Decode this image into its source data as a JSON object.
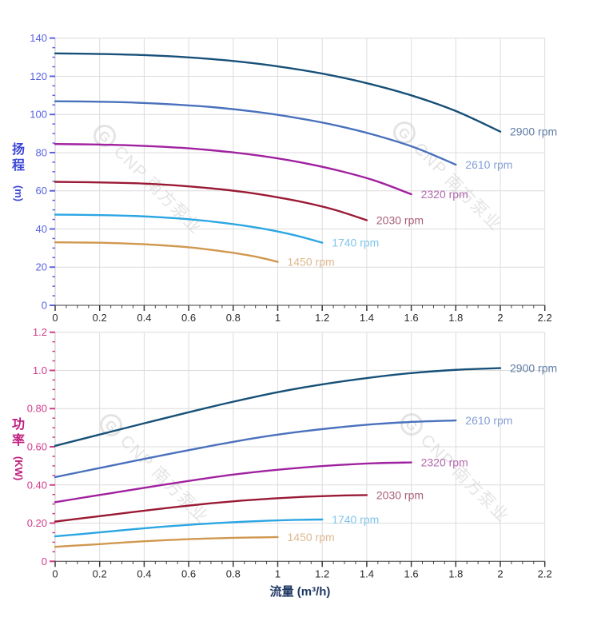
{
  "watermark": {
    "logo_letter": "G",
    "text": "CNP 南方泵业",
    "color": "#cfcfcf"
  },
  "axis_theme": {
    "grid_color": "#dcdcdc",
    "x_axis_color": "#3c3c3c",
    "x_tick_label_color": "#2b2b2b",
    "x_title_color": "#1f3864"
  },
  "chart_data": [
    {
      "type": "line",
      "title": "",
      "xlabel": "",
      "ylabel": "扬程 (m)",
      "ylabel_char1": "扬",
      "ylabel_char2": "程",
      "ylabel_unit": "(m)",
      "axis_color": "#5a63e0",
      "title_color": "#3c47d6",
      "xlim": [
        0,
        2.2
      ],
      "ylim": [
        0,
        140
      ],
      "grid": true,
      "legend_position": "end-of-line",
      "x_ticks": {
        "values": [
          0,
          0.2,
          0.4,
          0.6,
          0.8,
          1,
          1.2,
          1.4,
          1.6,
          1.8,
          2,
          2.2
        ],
        "labels": [
          "0",
          "0.2",
          "0.4",
          "0.6",
          "0.8",
          "1",
          "1.2",
          "1.4",
          "1.6",
          "1.8",
          "2",
          "2.2"
        ],
        "minor_step": 0.05
      },
      "y_ticks": {
        "values": [
          0,
          20,
          40,
          60,
          80,
          100,
          120,
          140
        ],
        "labels": [
          "0",
          "20",
          "40",
          "60",
          "80",
          "100",
          "120",
          "140"
        ],
        "minor_step": 5
      },
      "series": [
        {
          "name": "2900 rpm",
          "rpm": 2900,
          "color": "#175078",
          "label_color": "#5f7da6",
          "points": [
            [
              0,
              132
            ],
            [
              0.2,
              131.7
            ],
            [
              0.4,
              131.1
            ],
            [
              0.6,
              129.9
            ],
            [
              0.8,
              128
            ],
            [
              1,
              125.2
            ],
            [
              1.2,
              121.4
            ],
            [
              1.4,
              116.4
            ],
            [
              1.6,
              110
            ],
            [
              1.8,
              101.8
            ],
            [
              2,
              91
            ]
          ]
        },
        {
          "name": "2610 rpm",
          "rpm": 2610,
          "color": "#4a71bd",
          "label_color": "#84a0d6",
          "points": [
            [
              0,
              106.9
            ],
            [
              0.18,
              106.7
            ],
            [
              0.36,
              106.2
            ],
            [
              0.54,
              105.2
            ],
            [
              0.72,
              103.7
            ],
            [
              0.9,
              101.4
            ],
            [
              1.08,
              98.3
            ],
            [
              1.26,
              94.3
            ],
            [
              1.44,
              89.1
            ],
            [
              1.62,
              82.5
            ],
            [
              1.8,
              73.7
            ]
          ]
        },
        {
          "name": "2320 rpm",
          "rpm": 2320,
          "color": "#a0219f",
          "label_color": "#b168ae",
          "points": [
            [
              0,
              84.5
            ],
            [
              0.16,
              84.3
            ],
            [
              0.32,
              83.9
            ],
            [
              0.48,
              83.1
            ],
            [
              0.64,
              81.9
            ],
            [
              0.8,
              80.1
            ],
            [
              0.96,
              77.7
            ],
            [
              1.12,
              74.5
            ],
            [
              1.28,
              70.4
            ],
            [
              1.44,
              65.2
            ],
            [
              1.6,
              58.2
            ]
          ]
        },
        {
          "name": "2030 rpm",
          "rpm": 2030,
          "color": "#9a1a34",
          "label_color": "#a85f76",
          "points": [
            [
              0,
              64.7
            ],
            [
              0.14,
              64.5
            ],
            [
              0.28,
              64.2
            ],
            [
              0.42,
              63.7
            ],
            [
              0.56,
              62.7
            ],
            [
              0.7,
              61.3
            ],
            [
              0.84,
              59.5
            ],
            [
              0.98,
              57
            ],
            [
              1.12,
              53.9
            ],
            [
              1.26,
              49.9
            ],
            [
              1.4,
              44.6
            ]
          ]
        },
        {
          "name": "1740 rpm",
          "rpm": 1740,
          "color": "#2ba6e2",
          "label_color": "#7fc4ea",
          "points": [
            [
              0,
              47.5
            ],
            [
              0.12,
              47.4
            ],
            [
              0.24,
              47.2
            ],
            [
              0.36,
              46.8
            ],
            [
              0.48,
              46.1
            ],
            [
              0.6,
              45.1
            ],
            [
              0.72,
              43.7
            ],
            [
              0.84,
              41.9
            ],
            [
              0.96,
              39.6
            ],
            [
              1.08,
              36.6
            ],
            [
              1.2,
              32.8
            ]
          ]
        },
        {
          "name": "1450 rpm",
          "rpm": 1450,
          "color": "#d0984f",
          "label_color": "#deb98f",
          "points": [
            [
              0,
              33
            ],
            [
              0.1,
              32.9
            ],
            [
              0.2,
              32.8
            ],
            [
              0.3,
              32.5
            ],
            [
              0.4,
              32
            ],
            [
              0.5,
              31.3
            ],
            [
              0.6,
              30.4
            ],
            [
              0.7,
              29.1
            ],
            [
              0.8,
              27.5
            ],
            [
              0.9,
              25.5
            ],
            [
              1,
              22.8
            ]
          ]
        }
      ]
    },
    {
      "type": "line",
      "title": "",
      "xlabel": "流量 (m³/h)",
      "ylabel": "功率 (KW)",
      "ylabel_char1": "功",
      "ylabel_char2": "率",
      "ylabel_unit": "(KW)",
      "axis_color": "#d23c8c",
      "title_color": "#bf1d7e",
      "xlim": [
        0,
        2.2
      ],
      "ylim": [
        0,
        1.2
      ],
      "grid": true,
      "legend_position": "end-of-line",
      "x_ticks": {
        "values": [
          0,
          0.2,
          0.4,
          0.6,
          0.8,
          1,
          1.2,
          1.4,
          1.6,
          1.8,
          2,
          2.2
        ],
        "labels": [
          "0",
          "0.2",
          "0.4",
          "0.6",
          "0.8",
          "1",
          "1.2",
          "1.4",
          "1.6",
          "1.8",
          "2",
          "2.2"
        ],
        "minor_step": 0.05
      },
      "y_ticks": {
        "values": [
          0,
          0.2,
          0.4,
          0.6,
          0.8,
          1,
          1.2
        ],
        "labels": [
          "0",
          "0.20",
          "0.40",
          "0.60",
          "0.80",
          "1.0",
          "1.2"
        ],
        "minor_step": 0.05
      },
      "series": [
        {
          "name": "2900 rpm",
          "rpm": 2900,
          "color": "#175078",
          "label_color": "#5f7da6",
          "points": [
            [
              0,
              0.605
            ],
            [
              0.2,
              0.664
            ],
            [
              0.4,
              0.723
            ],
            [
              0.6,
              0.781
            ],
            [
              0.8,
              0.836
            ],
            [
              1,
              0.886
            ],
            [
              1.2,
              0.927
            ],
            [
              1.4,
              0.96
            ],
            [
              1.6,
              0.986
            ],
            [
              1.8,
              1.003
            ],
            [
              2,
              1.012
            ]
          ]
        },
        {
          "name": "2610 rpm",
          "rpm": 2610,
          "color": "#4a71bd",
          "label_color": "#84a0d6",
          "points": [
            [
              0,
              0.441
            ],
            [
              0.18,
              0.484
            ],
            [
              0.36,
              0.527
            ],
            [
              0.54,
              0.569
            ],
            [
              0.72,
              0.609
            ],
            [
              0.9,
              0.646
            ],
            [
              1.08,
              0.676
            ],
            [
              1.26,
              0.7
            ],
            [
              1.44,
              0.719
            ],
            [
              1.62,
              0.731
            ],
            [
              1.8,
              0.738
            ]
          ]
        },
        {
          "name": "2320 rpm",
          "rpm": 2320,
          "color": "#a0219f",
          "label_color": "#b168ae",
          "points": [
            [
              0,
              0.31
            ],
            [
              0.16,
              0.34
            ],
            [
              0.32,
              0.37
            ],
            [
              0.48,
              0.4
            ],
            [
              0.64,
              0.428
            ],
            [
              0.8,
              0.454
            ],
            [
              0.96,
              0.475
            ],
            [
              1.12,
              0.492
            ],
            [
              1.28,
              0.505
            ],
            [
              1.44,
              0.514
            ],
            [
              1.6,
              0.518
            ]
          ]
        },
        {
          "name": "2030 rpm",
          "rpm": 2030,
          "color": "#9a1a34",
          "label_color": "#a85f76",
          "points": [
            [
              0,
              0.208
            ],
            [
              0.14,
              0.228
            ],
            [
              0.28,
              0.248
            ],
            [
              0.42,
              0.268
            ],
            [
              0.56,
              0.287
            ],
            [
              0.7,
              0.304
            ],
            [
              0.84,
              0.318
            ],
            [
              0.98,
              0.329
            ],
            [
              1.12,
              0.338
            ],
            [
              1.26,
              0.344
            ],
            [
              1.4,
              0.347
            ]
          ]
        },
        {
          "name": "1740 rpm",
          "rpm": 1740,
          "color": "#2ba6e2",
          "label_color": "#7fc4ea",
          "points": [
            [
              0,
              0.131
            ],
            [
              0.12,
              0.143
            ],
            [
              0.24,
              0.156
            ],
            [
              0.36,
              0.169
            ],
            [
              0.48,
              0.181
            ],
            [
              0.6,
              0.191
            ],
            [
              0.72,
              0.2
            ],
            [
              0.84,
              0.207
            ],
            [
              0.96,
              0.213
            ],
            [
              1.08,
              0.217
            ],
            [
              1.2,
              0.219
            ]
          ]
        },
        {
          "name": "1450 rpm",
          "rpm": 1450,
          "color": "#d0984f",
          "label_color": "#deb98f",
          "points": [
            [
              0,
              0.076
            ],
            [
              0.1,
              0.083
            ],
            [
              0.2,
              0.09
            ],
            [
              0.3,
              0.098
            ],
            [
              0.4,
              0.105
            ],
            [
              0.5,
              0.111
            ],
            [
              0.6,
              0.116
            ],
            [
              0.7,
              0.12
            ],
            [
              0.8,
              0.123
            ],
            [
              0.9,
              0.125
            ],
            [
              1,
              0.127
            ]
          ]
        }
      ]
    }
  ]
}
